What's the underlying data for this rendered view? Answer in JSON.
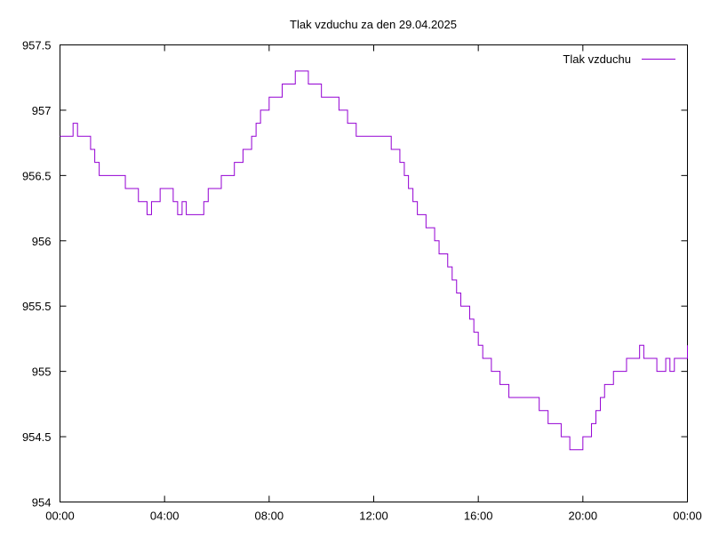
{
  "chart_data": {
    "type": "line",
    "title": "Tlak vzduchu za den 29.04.2025",
    "xlabel": "",
    "ylabel": "",
    "x_ticks": [
      "00:00",
      "04:00",
      "08:00",
      "12:00",
      "16:00",
      "20:00",
      "00:00"
    ],
    "y_ticks": [
      "954",
      "954.5",
      "955",
      "955.5",
      "956",
      "956.5",
      "957",
      "957.5"
    ],
    "xlim": [
      0,
      24
    ],
    "ylim": [
      954,
      957.5
    ],
    "grid": false,
    "legend": {
      "position": "top-right",
      "entries": [
        "Tlak vzduchu"
      ]
    },
    "series": [
      {
        "name": "Tlak vzduchu",
        "color": "#9400d3",
        "x": [
          0,
          0.33,
          0.5,
          0.67,
          1.0,
          1.17,
          1.33,
          1.5,
          1.67,
          2.0,
          2.5,
          2.83,
          3.0,
          3.17,
          3.33,
          3.5,
          3.67,
          3.83,
          4.0,
          4.17,
          4.33,
          4.5,
          4.67,
          4.83,
          5.0,
          5.33,
          5.5,
          5.67,
          6.0,
          6.17,
          6.33,
          6.5,
          6.67,
          6.83,
          7.0,
          7.17,
          7.33,
          7.5,
          7.67,
          7.83,
          8.0,
          8.17,
          8.33,
          8.5,
          8.67,
          8.83,
          9.0,
          9.17,
          9.33,
          9.5,
          9.67,
          9.83,
          10.0,
          10.33,
          10.67,
          11.0,
          11.17,
          11.33,
          11.67,
          12.0,
          12.33,
          12.67,
          12.83,
          13.0,
          13.17,
          13.33,
          13.5,
          13.67,
          13.83,
          14.0,
          14.17,
          14.33,
          14.5,
          14.67,
          14.83,
          15.0,
          15.17,
          15.33,
          15.5,
          15.67,
          15.83,
          16.0,
          16.17,
          16.33,
          16.5,
          16.67,
          16.83,
          17.0,
          17.17,
          17.33,
          17.5,
          17.67,
          17.83,
          18.0,
          18.33,
          18.5,
          18.67,
          19.0,
          19.17,
          19.33,
          19.5,
          19.67,
          19.83,
          20.0,
          20.17,
          20.33,
          20.5,
          20.67,
          20.83,
          21.0,
          21.17,
          21.33,
          21.5,
          21.67,
          21.83,
          22.0,
          22.17,
          22.33,
          22.5,
          22.67,
          22.83,
          23.0,
          23.17,
          23.33,
          23.5,
          23.67,
          23.83,
          24.0
        ],
        "y": [
          956.8,
          956.8,
          956.9,
          956.8,
          956.8,
          956.7,
          956.6,
          956.5,
          956.5,
          956.5,
          956.4,
          956.4,
          956.3,
          956.3,
          956.2,
          956.3,
          956.3,
          956.4,
          956.4,
          956.4,
          956.3,
          956.2,
          956.3,
          956.2,
          956.2,
          956.2,
          956.3,
          956.4,
          956.4,
          956.5,
          956.5,
          956.5,
          956.6,
          956.6,
          956.7,
          956.7,
          956.8,
          956.9,
          957.0,
          957.0,
          957.1,
          957.1,
          957.1,
          957.2,
          957.2,
          957.2,
          957.3,
          957.3,
          957.3,
          957.2,
          957.2,
          957.2,
          957.1,
          957.1,
          957.0,
          956.9,
          956.9,
          956.8,
          956.8,
          956.8,
          956.8,
          956.7,
          956.7,
          956.6,
          956.5,
          956.4,
          956.3,
          956.2,
          956.2,
          956.1,
          956.1,
          956.0,
          955.9,
          955.9,
          955.8,
          955.7,
          955.6,
          955.5,
          955.5,
          955.4,
          955.3,
          955.2,
          955.1,
          955.1,
          955.0,
          955.0,
          954.9,
          954.9,
          954.8,
          954.8,
          954.8,
          954.8,
          954.8,
          954.8,
          954.7,
          954.7,
          954.6,
          954.6,
          954.5,
          954.5,
          954.4,
          954.4,
          954.4,
          954.5,
          954.5,
          954.6,
          954.7,
          954.8,
          954.9,
          954.9,
          955.0,
          955.0,
          955.0,
          955.1,
          955.1,
          955.1,
          955.2,
          955.1,
          955.1,
          955.1,
          955.0,
          955.0,
          955.1,
          955.0,
          955.1,
          955.1,
          955.1,
          955.2
        ]
      }
    ]
  }
}
